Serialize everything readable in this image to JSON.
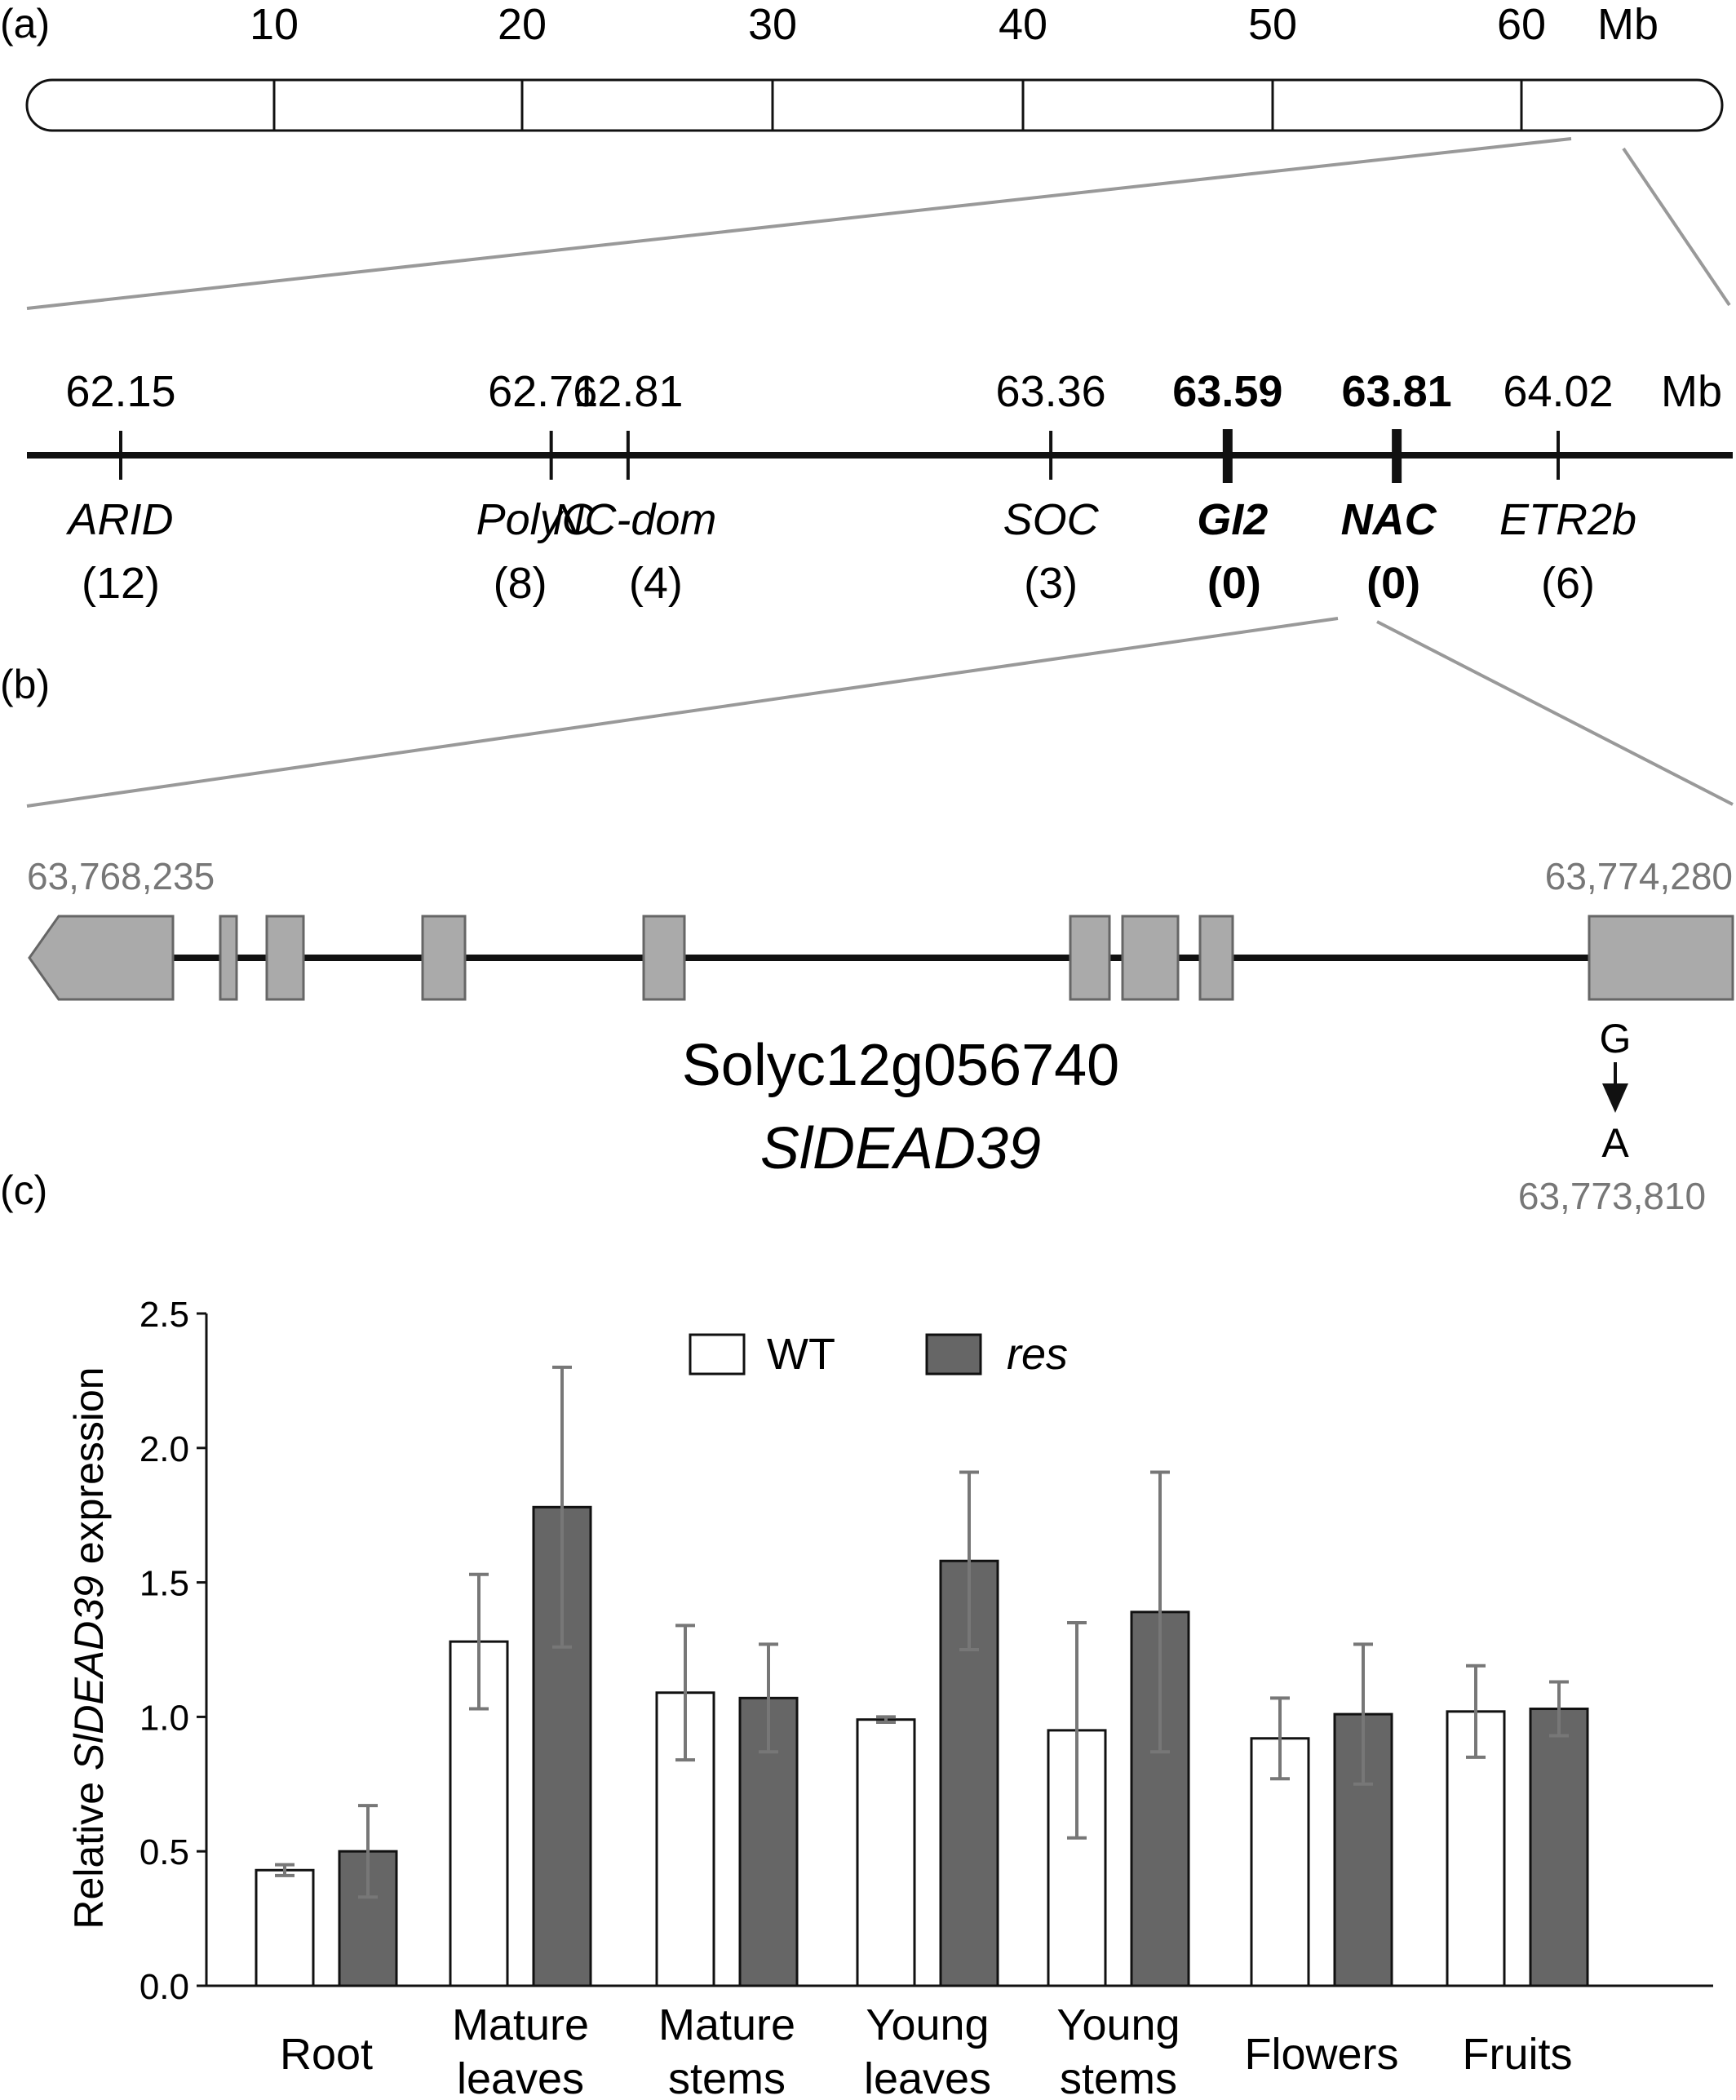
{
  "panel_a": {
    "label": "(a)",
    "chromosome": {
      "ticks": [
        "10",
        "20",
        "30",
        "40",
        "50",
        "60"
      ],
      "unit": "Mb"
    },
    "markers": {
      "unit": "Mb",
      "items": [
        {
          "position": "62.15",
          "pos_value": 62.15,
          "gene": "ARID",
          "count": "(12)",
          "bold": false
        },
        {
          "position": "62.71",
          "pos_value": 62.71,
          "gene": "PolyC",
          "count": "(8)",
          "bold": false
        },
        {
          "position": "62.81",
          "pos_value": 62.81,
          "gene": "NC-dom",
          "count": "(4)",
          "bold": false
        },
        {
          "position": "63.36",
          "pos_value": 63.36,
          "gene": "SOC",
          "count": "(3)",
          "bold": false
        },
        {
          "position": "63.59",
          "pos_value": 63.59,
          "gene": "GI2",
          "count": "(0)",
          "bold": true
        },
        {
          "position": "63.81",
          "pos_value": 63.81,
          "gene": "NAC",
          "count": "(0)",
          "bold": true
        },
        {
          "position": "64.02",
          "pos_value": 64.02,
          "gene": "ETR2b",
          "count": "(6)",
          "bold": false
        }
      ]
    }
  },
  "panel_b": {
    "label": "(b)",
    "start_coord": "63,768,235",
    "end_coord": "63,774,280",
    "gene_id": "Solyc12g056740",
    "gene_name": "SlDEAD39",
    "mutation": {
      "from": "G",
      "to": "A",
      "coord": "63,773,810"
    }
  },
  "panel_c": {
    "label": "(c)",
    "colors": {
      "WT": "#ffffff",
      "res": "#666666"
    }
  },
  "chart_data": {
    "type": "bar",
    "categories": [
      "Root",
      "Mature\nleaves",
      "Mature\nstems",
      "Young\nleaves",
      "Young\nstems",
      "Flowers",
      "Fruits"
    ],
    "category_lines": [
      [
        "Root"
      ],
      [
        "Mature",
        "leaves"
      ],
      [
        "Mature",
        "stems"
      ],
      [
        "Young",
        "leaves"
      ],
      [
        "Young",
        "stems"
      ],
      [
        "Flowers"
      ],
      [
        "Fruits"
      ]
    ],
    "series": [
      {
        "name": "WT",
        "values": [
          0.43,
          1.28,
          1.09,
          0.99,
          0.95,
          0.92,
          1.02
        ],
        "errors": [
          0.02,
          0.25,
          0.25,
          0.01,
          0.4,
          0.15,
          0.17
        ]
      },
      {
        "name": "res",
        "values": [
          0.5,
          1.78,
          1.07,
          1.58,
          1.39,
          1.01,
          1.03
        ],
        "errors": [
          0.17,
          0.52,
          0.2,
          0.33,
          0.52,
          0.26,
          0.1
        ]
      }
    ],
    "ylabel_prefix": "Relative ",
    "ylabel_italic": "SlDEAD39",
    "ylabel_suffix": " expression",
    "ylim": [
      0,
      2.5
    ],
    "yticks": [
      "0.0",
      "0.5",
      "1.0",
      "1.5",
      "2.0",
      "2.5"
    ],
    "ytick_values": [
      0,
      0.5,
      1.0,
      1.5,
      2.0,
      2.5
    ],
    "legend_position": "top-center",
    "grid": false
  }
}
